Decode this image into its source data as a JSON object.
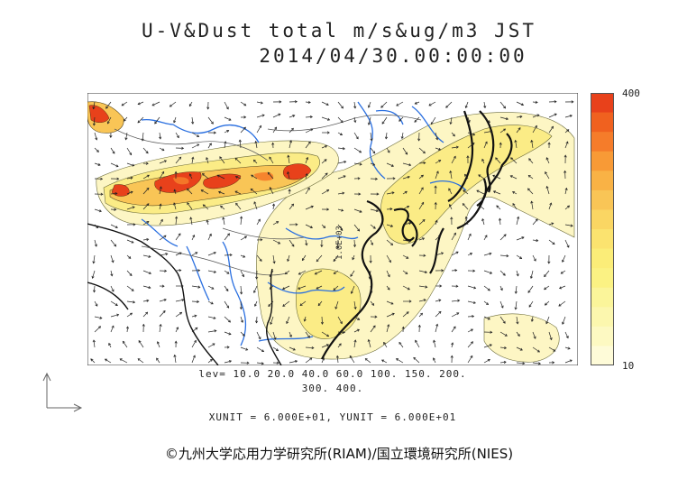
{
  "header": {
    "title": "U-V&Dust total m/s&ug/m3 JST",
    "datetime": "2014/04/30.00:00:00"
  },
  "colorbar": {
    "max_label": "400",
    "min_label": "10",
    "colors": [
      "#e8411b",
      "#f0611f",
      "#f57c2a",
      "#f89a36",
      "#f9b245",
      "#f9c556",
      "#fad663",
      "#fbe36f",
      "#fbed78",
      "#fbf283",
      "#fbf59a",
      "#fcf7ae",
      "#fdf9c2",
      "#fefbd8"
    ]
  },
  "legend": {
    "levels_line": "lev= 10.0 20.0 40.0 60.0 100. 150. 200.",
    "levels_line2": "300. 400.",
    "units_line": "XUNIT = 6.000E+01, YUNIT = 6.000E+01"
  },
  "contour_label": "1.0E+03",
  "credit": "©九州大学応用力学研究所(RIAM)/国立環境研究所(NIES)"
}
